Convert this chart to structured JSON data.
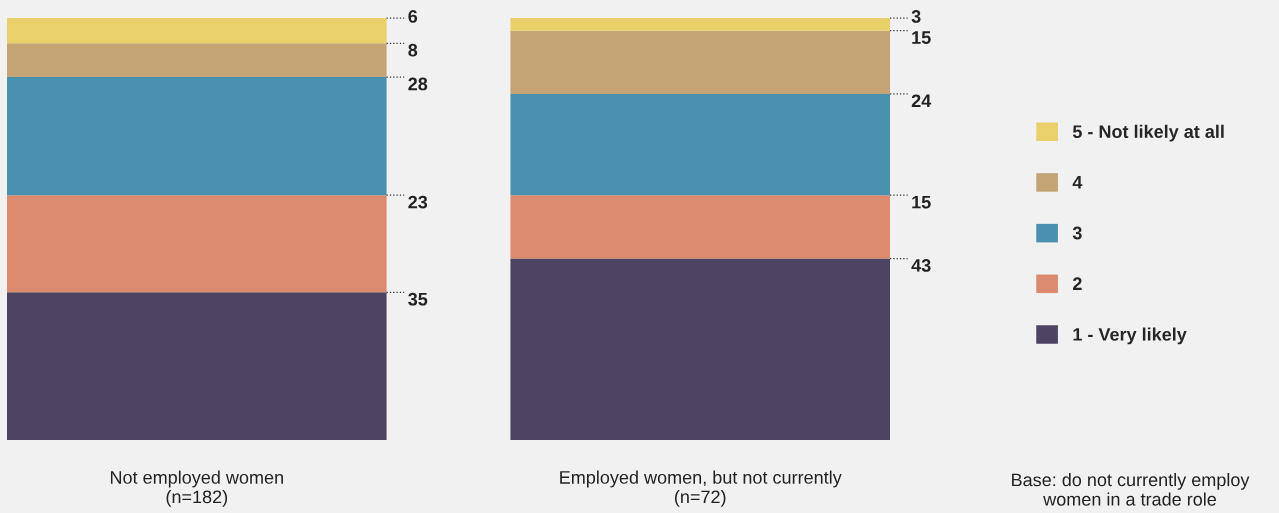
{
  "chart_data": {
    "type": "bar",
    "stacked": true,
    "data_labels": true,
    "legend": "right",
    "grid": false,
    "categories": [
      "Not employed women\n(n=182)",
      "Employed women, but not currently\n(n=72)"
    ],
    "series": [
      {
        "name": "1 - Very likely",
        "color": "#4d4463",
        "values": [
          35,
          43
        ]
      },
      {
        "name": "2",
        "color": "#db8a6e",
        "values": [
          23,
          15
        ]
      },
      {
        "name": "3",
        "color": "#4a91b0",
        "values": [
          28,
          24
        ]
      },
      {
        "name": "4",
        "color": "#c4a474",
        "values": [
          8,
          15
        ]
      },
      {
        "name": "5 - Not likely at all",
        "color": "#e9d06a",
        "values": [
          6,
          3
        ]
      }
    ],
    "ylim": [
      0,
      100
    ],
    "annotations": [
      "Base: do not currently employ women in a trade role"
    ]
  }
}
